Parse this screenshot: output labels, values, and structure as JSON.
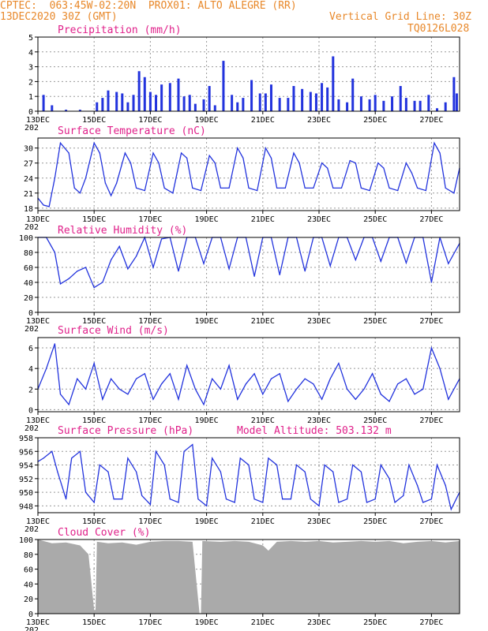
{
  "header": {
    "line1": "CPTEC:  063:45W-02:20N  PROX01: ALTO ALEGRE (RR)",
    "date": "13DEC2020 30Z (GMT)",
    "grid_note": "Vertical Grid Line: 30Z",
    "code": "TQ0126L028"
  },
  "colors": {
    "header": "#e8882a",
    "title": "#e0208a",
    "series": "#2233dd",
    "cloud": "#aaaaaa",
    "grid": "#999999"
  },
  "x_axis_labels": [
    "13DEC",
    "15DEC",
    "17DEC",
    "19DEC",
    "21DEC",
    "23DEC",
    "25DEC",
    "27DEC"
  ],
  "x_label_fragment": "202",
  "chart_data": [
    {
      "type": "bar",
      "title": "Precipitation (mm/h)",
      "ylim": [
        0,
        5
      ],
      "yticks": [
        "0",
        "1",
        "2",
        "3",
        "4",
        "5"
      ],
      "x_range_days": [
        13,
        28
      ],
      "grid": true,
      "note": "approximate daily hourly-peak rainfall (mm/h)",
      "x": [
        13.2,
        13.5,
        14.0,
        14.5,
        15.1,
        15.3,
        15.5,
        15.8,
        16.0,
        16.2,
        16.4,
        16.6,
        16.8,
        17.0,
        17.2,
        17.4,
        17.7,
        18.0,
        18.2,
        18.4,
        18.6,
        18.9,
        19.1,
        19.3,
        19.6,
        19.9,
        20.1,
        20.3,
        20.6,
        20.9,
        21.1,
        21.3,
        21.6,
        21.9,
        22.1,
        22.4,
        22.7,
        22.9,
        23.1,
        23.3,
        23.5,
        23.7,
        24.0,
        24.2,
        24.5,
        24.8,
        25.0,
        25.3,
        25.6,
        25.9,
        26.1,
        26.4,
        26.6,
        26.9,
        27.2,
        27.5,
        27.8,
        27.9
      ],
      "values": [
        1.1,
        0.4,
        0.1,
        0.1,
        0.6,
        0.9,
        1.4,
        1.3,
        1.2,
        0.6,
        1.1,
        2.7,
        2.3,
        1.3,
        1.1,
        1.8,
        1.9,
        2.2,
        1.0,
        1.1,
        0.5,
        0.8,
        1.7,
        0.4,
        3.4,
        1.1,
        0.6,
        0.9,
        2.1,
        1.2,
        1.2,
        1.8,
        0.9,
        0.9,
        1.7,
        1.5,
        1.3,
        1.2,
        1.9,
        1.6,
        3.7,
        0.8,
        0.6,
        2.2,
        1.0,
        0.8,
        1.1,
        0.7,
        1.0,
        1.7,
        0.9,
        0.7,
        0.7,
        1.1,
        0.2,
        0.6,
        2.3,
        1.2
      ]
    },
    {
      "type": "line",
      "title": "Surface Temperature (nC)",
      "ylim": [
        17.5,
        32
      ],
      "yticks": [
        "18",
        "21",
        "24",
        "27",
        "30"
      ],
      "ytick_values": [
        18,
        21,
        24,
        27,
        30
      ],
      "grid": true,
      "x": [
        13.0,
        13.2,
        13.4,
        13.6,
        13.8,
        14.1,
        14.3,
        14.5,
        14.7,
        15.0,
        15.2,
        15.4,
        15.6,
        15.8,
        16.1,
        16.3,
        16.5,
        16.8,
        17.1,
        17.3,
        17.5,
        17.8,
        18.1,
        18.3,
        18.5,
        18.8,
        19.1,
        19.3,
        19.5,
        19.8,
        20.1,
        20.3,
        20.5,
        20.8,
        21.1,
        21.3,
        21.5,
        21.8,
        22.1,
        22.3,
        22.5,
        22.8,
        23.1,
        23.3,
        23.5,
        23.8,
        24.1,
        24.3,
        24.5,
        24.8,
        25.1,
        25.3,
        25.5,
        25.8,
        26.1,
        26.3,
        26.5,
        26.8,
        27.1,
        27.3,
        27.5,
        27.8,
        28.0
      ],
      "values": [
        20,
        18.6,
        18.3,
        24,
        31,
        29,
        22,
        21,
        24,
        31,
        29,
        23,
        20.5,
        23,
        29,
        27,
        22,
        21.5,
        29,
        27,
        22,
        21,
        29,
        28,
        22,
        21.5,
        28.5,
        27,
        22,
        22,
        30,
        28,
        22,
        21.5,
        30,
        28,
        22,
        22,
        29,
        27,
        22,
        22,
        27,
        26,
        22,
        22,
        27.5,
        27,
        22,
        21.5,
        27,
        26,
        22,
        21.5,
        27,
        25,
        22,
        21.5,
        31,
        29,
        22,
        21,
        26
      ]
    },
    {
      "type": "line",
      "title": "Relative Humidity (%)",
      "ylim": [
        0,
        100
      ],
      "yticks": [
        "0",
        "20",
        "40",
        "60",
        "80",
        "100"
      ],
      "ytick_values": [
        0,
        20,
        40,
        60,
        80,
        100
      ],
      "grid": true,
      "x": [
        13.0,
        13.3,
        13.6,
        13.8,
        14.1,
        14.4,
        14.7,
        15.0,
        15.3,
        15.6,
        15.9,
        16.2,
        16.5,
        16.8,
        17.1,
        17.4,
        17.7,
        18.0,
        18.3,
        18.6,
        18.9,
        19.2,
        19.5,
        19.8,
        20.1,
        20.4,
        20.7,
        21.0,
        21.3,
        21.6,
        21.9,
        22.2,
        22.5,
        22.8,
        23.1,
        23.4,
        23.7,
        24.0,
        24.3,
        24.6,
        24.9,
        25.2,
        25.5,
        25.8,
        26.1,
        26.4,
        26.7,
        27.0,
        27.3,
        27.6,
        28.0
      ],
      "values": [
        100,
        100,
        80,
        38,
        45,
        55,
        60,
        33,
        40,
        70,
        88,
        58,
        75,
        100,
        60,
        98,
        100,
        55,
        100,
        100,
        65,
        100,
        100,
        58,
        100,
        100,
        48,
        100,
        100,
        50,
        100,
        100,
        55,
        100,
        100,
        62,
        100,
        100,
        70,
        100,
        100,
        68,
        100,
        100,
        66,
        100,
        100,
        40,
        100,
        65,
        92
      ]
    },
    {
      "type": "line",
      "title": "Surface Wind (m/s)",
      "ylim": [
        -0.2,
        7
      ],
      "yticks": [
        "0",
        "2",
        "4",
        "6"
      ],
      "ytick_values": [
        0,
        2,
        4,
        6
      ],
      "grid": true,
      "x": [
        13.0,
        13.3,
        13.6,
        13.8,
        14.1,
        14.4,
        14.7,
        15.0,
        15.3,
        15.6,
        15.9,
        16.2,
        16.5,
        16.8,
        17.1,
        17.4,
        17.7,
        18.0,
        18.3,
        18.6,
        18.9,
        19.2,
        19.5,
        19.8,
        20.1,
        20.4,
        20.7,
        21.0,
        21.3,
        21.6,
        21.9,
        22.2,
        22.5,
        22.8,
        23.1,
        23.4,
        23.7,
        24.0,
        24.3,
        24.6,
        24.9,
        25.2,
        25.5,
        25.8,
        26.1,
        26.4,
        26.7,
        27.0,
        27.3,
        27.6,
        28.0
      ],
      "values": [
        2,
        4,
        6.4,
        1.5,
        0.5,
        3,
        2,
        4.5,
        1,
        3,
        2,
        1.5,
        3,
        3.5,
        1,
        2.5,
        3.5,
        1,
        4.3,
        2,
        0.5,
        3,
        2,
        4.3,
        1,
        2.5,
        3.5,
        1.5,
        3,
        3.5,
        0.8,
        2,
        3,
        2.5,
        1,
        3,
        4.5,
        2,
        1,
        2,
        3.5,
        1.5,
        0.8,
        2.5,
        3,
        1.5,
        2,
        6,
        4,
        1,
        3
      ]
    },
    {
      "type": "line",
      "title": "Surface Pressure (hPa)",
      "annotation": "Model Altitude: 503.132 m",
      "ylim": [
        947,
        958
      ],
      "yticks": [
        "948",
        "950",
        "952",
        "954",
        "956",
        "958"
      ],
      "ytick_values": [
        948,
        950,
        952,
        954,
        956,
        958
      ],
      "grid": true,
      "x": [
        13.0,
        13.2,
        13.5,
        13.7,
        14.0,
        14.2,
        14.5,
        14.7,
        15.0,
        15.2,
        15.5,
        15.7,
        16.0,
        16.2,
        16.5,
        16.7,
        17.0,
        17.2,
        17.5,
        17.7,
        18.0,
        18.2,
        18.5,
        18.7,
        19.0,
        19.2,
        19.5,
        19.7,
        20.0,
        20.2,
        20.5,
        20.7,
        21.0,
        21.2,
        21.5,
        21.7,
        22.0,
        22.2,
        22.5,
        22.7,
        23.0,
        23.2,
        23.5,
        23.7,
        24.0,
        24.2,
        24.5,
        24.7,
        25.0,
        25.2,
        25.5,
        25.7,
        26.0,
        26.2,
        26.5,
        26.7,
        27.0,
        27.2,
        27.5,
        27.7,
        28.0
      ],
      "values": [
        954.5,
        955,
        956,
        953,
        949,
        955,
        956,
        950,
        948.5,
        954,
        953,
        949,
        949,
        955,
        953,
        949.5,
        948.2,
        956,
        954,
        949,
        948.5,
        956,
        957,
        949,
        948,
        955,
        953,
        949,
        948.5,
        955,
        954,
        949,
        948.5,
        955,
        954,
        949,
        949,
        954,
        953,
        949,
        948,
        954,
        953,
        948.5,
        949,
        954,
        953,
        948.5,
        949,
        954,
        952,
        948.5,
        949.5,
        954,
        951,
        948.5,
        949,
        954,
        951,
        947.5,
        950
      ]
    },
    {
      "type": "area",
      "title": "Cloud Cover (%)",
      "ylim": [
        0,
        100
      ],
      "yticks": [
        "0",
        "20",
        "40",
        "60",
        "80",
        "100"
      ],
      "ytick_values": [
        0,
        20,
        40,
        60,
        80,
        100
      ],
      "grid": true,
      "x": [
        13.0,
        13.5,
        14.0,
        14.5,
        14.8,
        15.0,
        15.05,
        15.1,
        15.5,
        16.0,
        16.5,
        17.0,
        17.5,
        18.0,
        18.5,
        18.75,
        18.8,
        18.85,
        19.5,
        20.0,
        20.5,
        21.0,
        21.2,
        21.5,
        22.0,
        22.5,
        23.0,
        23.5,
        24.0,
        24.5,
        25.0,
        25.5,
        26.0,
        26.5,
        27.0,
        27.5,
        28.0
      ],
      "values": [
        100,
        95,
        96,
        92,
        80,
        5,
        5,
        97,
        95,
        96,
        93,
        97,
        98,
        98,
        97,
        0,
        0,
        98,
        97,
        98,
        97,
        92,
        85,
        97,
        98,
        97,
        98,
        96,
        97,
        98,
        97,
        98,
        95,
        97,
        98,
        96,
        98
      ]
    }
  ]
}
